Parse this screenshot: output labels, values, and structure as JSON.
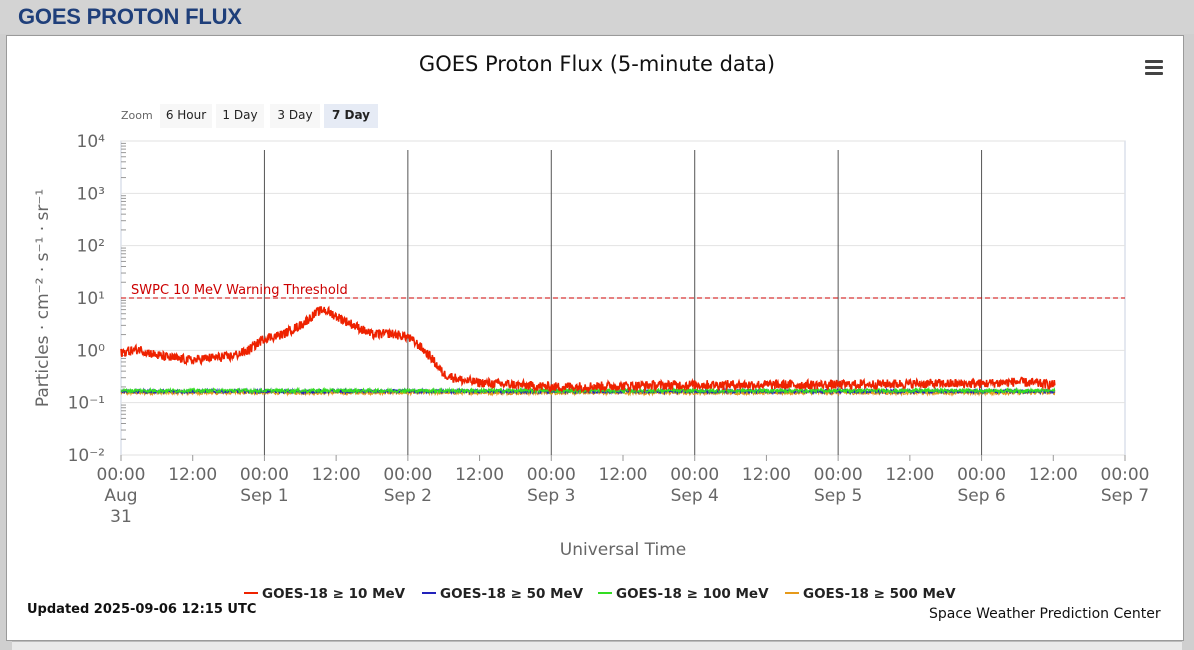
{
  "page": {
    "title": "GOES PROTON FLUX"
  },
  "zoom": {
    "label": "Zoom",
    "buttons": [
      "6 Hour",
      "1 Day",
      "3 Day",
      "7 Day"
    ],
    "active": "7 Day"
  },
  "footer": {
    "updated": "Updated 2025-09-06 12:15 UTC",
    "credit": "Space Weather Prediction Center"
  },
  "chart_data": {
    "type": "line",
    "title": "GOES Proton Flux (5-minute data)",
    "xlabel": "Universal Time",
    "ylabel": "Particles · cm⁻² · s⁻¹ · sr⁻¹",
    "yscale": "log",
    "ylim": [
      0.01,
      10000
    ],
    "y_ticks": [
      "10⁻²",
      "10⁻¹",
      "10⁰",
      "10¹",
      "10²",
      "10³",
      "10⁴"
    ],
    "x_range": [
      "2025-08-31 00:00",
      "2025-09-07 00:00"
    ],
    "x_ticks": [
      {
        "time": "00:00",
        "date": "Aug 31"
      },
      {
        "time": "12:00",
        "date": ""
      },
      {
        "time": "00:00",
        "date": "Sep 1"
      },
      {
        "time": "12:00",
        "date": ""
      },
      {
        "time": "00:00",
        "date": "Sep 2"
      },
      {
        "time": "12:00",
        "date": ""
      },
      {
        "time": "00:00",
        "date": "Sep 3"
      },
      {
        "time": "12:00",
        "date": ""
      },
      {
        "time": "00:00",
        "date": "Sep 4"
      },
      {
        "time": "12:00",
        "date": ""
      },
      {
        "time": "00:00",
        "date": "Sep 5"
      },
      {
        "time": "12:00",
        "date": ""
      },
      {
        "time": "00:00",
        "date": "Sep 6"
      },
      {
        "time": "12:00",
        "date": ""
      },
      {
        "time": "00:00",
        "date": "Sep 7"
      }
    ],
    "threshold": {
      "label": "SWPC 10 MeV Warning Threshold",
      "value": 10,
      "color": "#cc0000"
    },
    "grid": true,
    "legend_position": "bottom",
    "series": [
      {
        "name": "GOES-18 ≥ 10 MeV",
        "color": "#ee2200",
        "x": [
          "2025-08-31 00:00",
          "2025-08-31 03:00",
          "2025-08-31 06:00",
          "2025-08-31 09:00",
          "2025-08-31 12:00",
          "2025-08-31 15:00",
          "2025-08-31 18:00",
          "2025-08-31 21:00",
          "2025-09-01 00:00",
          "2025-09-01 03:00",
          "2025-09-01 06:00",
          "2025-09-01 09:00",
          "2025-09-01 10:00",
          "2025-09-01 12:00",
          "2025-09-01 15:00",
          "2025-09-01 18:00",
          "2025-09-01 21:00",
          "2025-09-02 00:00",
          "2025-09-02 02:00",
          "2025-09-02 04:00",
          "2025-09-02 06:00",
          "2025-09-02 09:00",
          "2025-09-02 12:00",
          "2025-09-02 18:00",
          "2025-09-03 00:00",
          "2025-09-03 12:00",
          "2025-09-04 00:00",
          "2025-09-04 12:00",
          "2025-09-05 00:00",
          "2025-09-05 12:00",
          "2025-09-06 00:00",
          "2025-09-06 06:00",
          "2025-09-06 12:15"
        ],
        "y": [
          0.9,
          1.05,
          0.8,
          0.7,
          0.65,
          0.72,
          0.75,
          0.95,
          1.7,
          2.0,
          3.0,
          5.5,
          6.0,
          4.5,
          3.0,
          2.0,
          2.1,
          1.8,
          1.2,
          0.7,
          0.35,
          0.27,
          0.24,
          0.22,
          0.2,
          0.21,
          0.22,
          0.22,
          0.22,
          0.23,
          0.23,
          0.25,
          0.22
        ]
      },
      {
        "name": "GOES-18 ≥ 50 MeV",
        "color": "#2222bb",
        "x": [
          "2025-08-31 00:00",
          "2025-09-06 12:15"
        ],
        "y": [
          0.165,
          0.165
        ]
      },
      {
        "name": "GOES-18 ≥ 100 MeV",
        "color": "#33dd22",
        "x": [
          "2025-08-31 00:00",
          "2025-09-06 12:15"
        ],
        "y": [
          0.17,
          0.17
        ]
      },
      {
        "name": "GOES-18 ≥ 500 MeV",
        "color": "#e69a1a",
        "x": [
          "2025-08-31 00:00",
          "2025-09-06 12:15"
        ],
        "y": [
          0.155,
          0.155
        ]
      }
    ]
  }
}
